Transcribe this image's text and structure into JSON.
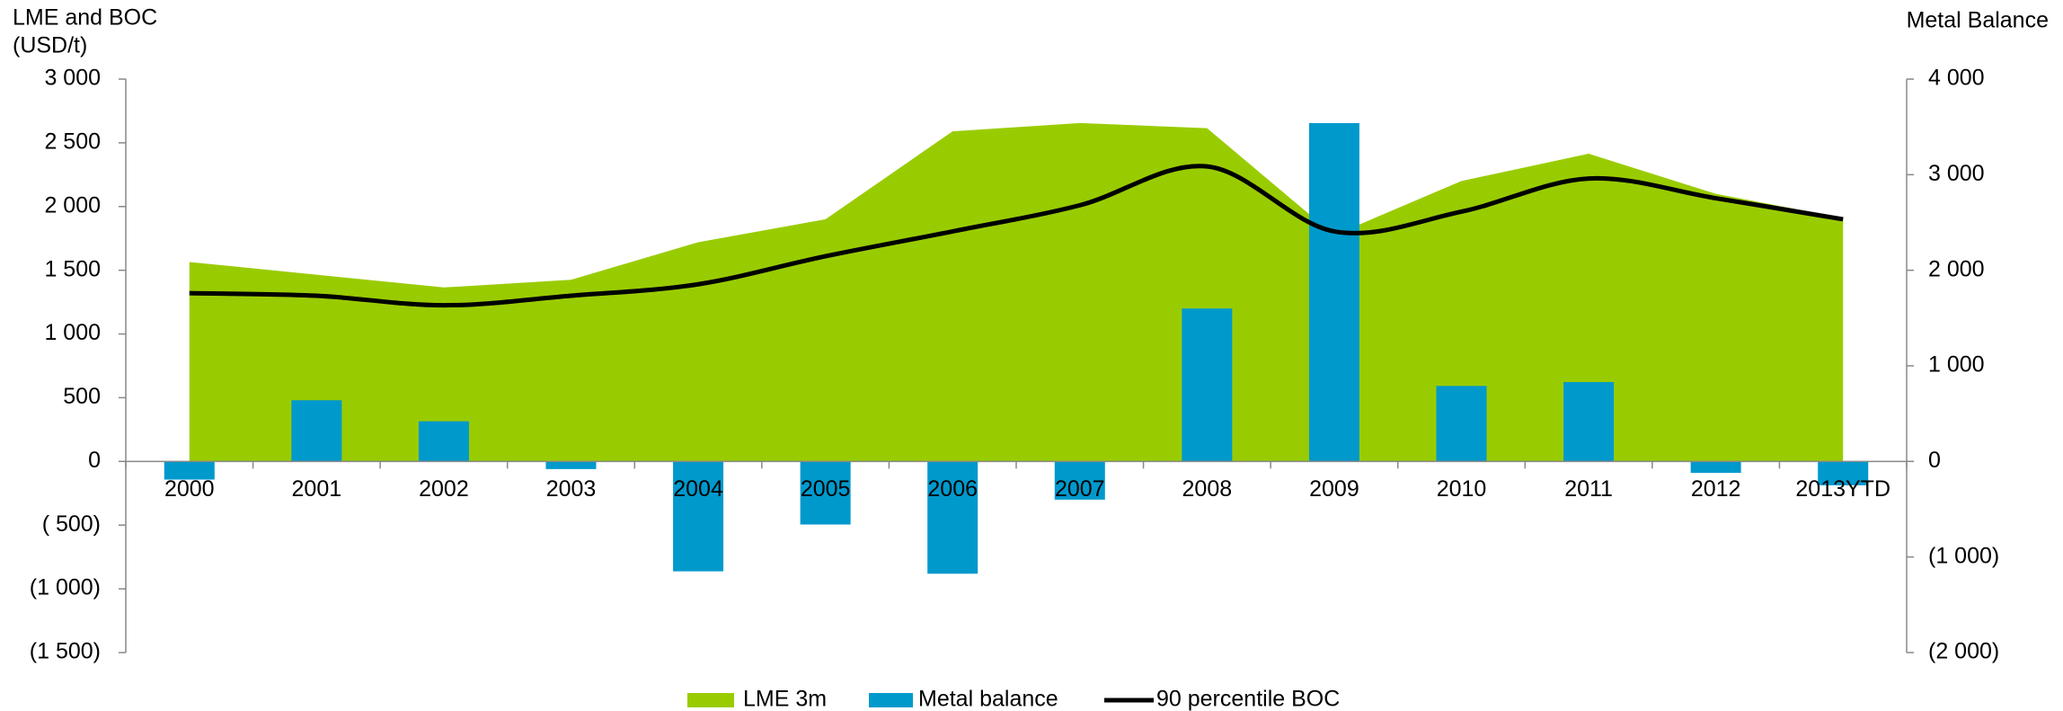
{
  "chart_data": {
    "type": "combo",
    "y_label": [
      "LME and BOC",
      "(USD/t)"
    ],
    "y2_label": "Metal Balance",
    "categories": [
      "2000",
      "2001",
      "2002",
      "2003",
      "2004",
      "2005",
      "2006",
      "2007",
      "2008",
      "2009",
      "2010",
      "2011",
      "2012",
      "2013YTD"
    ],
    "series": [
      {
        "name": "LME 3m",
        "type": "area",
        "color": "#99cc00",
        "axis": "y",
        "values": [
          1565,
          1465,
          1365,
          1425,
          1720,
          1900,
          2590,
          2655,
          2615,
          1775,
          2200,
          2415,
          2100,
          1910
        ]
      },
      {
        "name": "Metal balance",
        "type": "bar",
        "color": "#0099cc",
        "axis": "y2",
        "values": [
          -190,
          640,
          420,
          -80,
          -1150,
          -660,
          -1175,
          -400,
          1600,
          3540,
          790,
          830,
          -120,
          -250
        ]
      },
      {
        "name": "90 percentile BOC",
        "type": "line",
        "color": "#000000",
        "axis": "y",
        "smooth": true,
        "values": [
          1320,
          1300,
          1225,
          1300,
          1390,
          1610,
          1805,
          2010,
          2315,
          1805,
          1960,
          2220,
          2065,
          1900
        ]
      }
    ],
    "ylim": [
      -1500,
      3000
    ],
    "yticks": [
      {
        "value": -1500,
        "label": "(1 500)"
      },
      {
        "value": -1000,
        "label": "(1 000)"
      },
      {
        "value": -500,
        "label": "( 500)"
      },
      0,
      500,
      {
        "value": 1000,
        "label": "1 000"
      },
      {
        "value": 1500,
        "label": "1 500"
      },
      {
        "value": 2000,
        "label": "2 000"
      },
      {
        "value": 2500,
        "label": "2 500"
      },
      {
        "value": 3000,
        "label": "3 000"
      }
    ],
    "y2lim": [
      -2000,
      4000
    ],
    "y2ticks": [
      {
        "value": -2000,
        "label": "(2 000)"
      },
      {
        "value": -1000,
        "label": "(1 000)"
      },
      0,
      {
        "value": 1000,
        "label": "1 000"
      },
      {
        "value": 2000,
        "label": "2 000"
      },
      {
        "value": 3000,
        "label": "3 000"
      },
      {
        "value": 4000,
        "label": "4 000"
      }
    ],
    "grid": false,
    "legend": "bottom"
  }
}
